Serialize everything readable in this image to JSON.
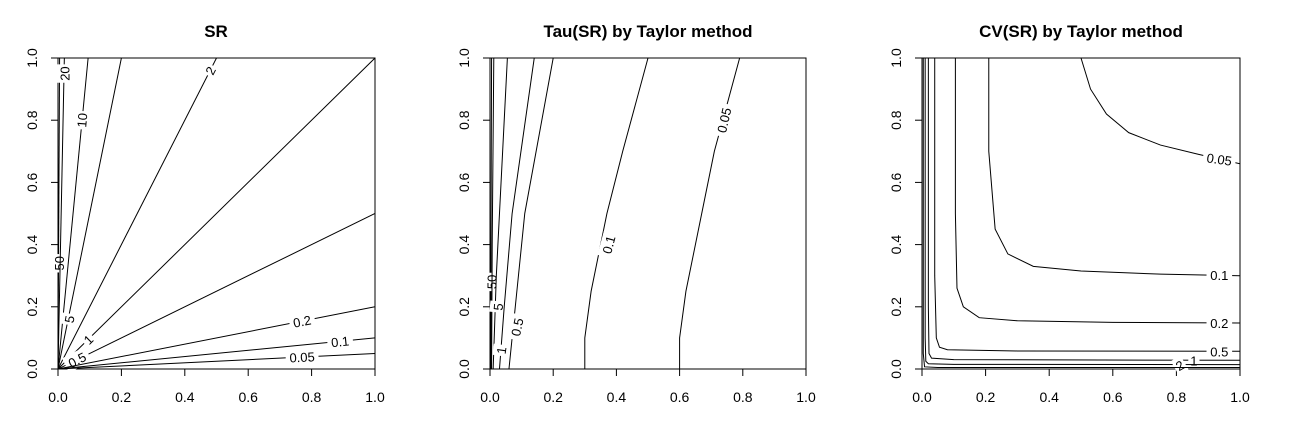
{
  "chart_data": [
    {
      "type": "contour",
      "title": "SR",
      "xlim": [
        0,
        1
      ],
      "ylim": [
        0,
        1
      ],
      "x_ticks": [
        "0.0",
        "0.2",
        "0.4",
        "0.6",
        "0.8",
        "1.0"
      ],
      "y_ticks": [
        "0.0",
        "0.2",
        "0.4",
        "0.6",
        "0.8",
        "1.0"
      ],
      "contours": [
        {
          "level": 50,
          "label": "50",
          "points": [
            [
              0,
              0
            ],
            [
              0.005,
              1
            ]
          ],
          "label_at": [
            0.003,
            0.34
          ],
          "label_rotation": -90
        },
        {
          "level": 20,
          "label": "20",
          "points": [
            [
              0,
              0
            ],
            [
              0.02,
              1
            ]
          ],
          "label_at": [
            0.02,
            0.95
          ],
          "label_rotation": -90
        },
        {
          "level": 10,
          "label": "10",
          "points": [
            [
              0,
              0
            ],
            [
              0.095,
              1
            ]
          ],
          "label_at": [
            0.075,
            0.8
          ],
          "label_rotation": -85
        },
        {
          "level": 5,
          "label": "5",
          "points": [
            [
              0,
              0
            ],
            [
              0.2,
              1
            ]
          ],
          "label_at": [
            0.035,
            0.16
          ],
          "label_rotation": -80
        },
        {
          "level": 2,
          "label": "2",
          "points": [
            [
              0,
              0
            ],
            [
              0.5,
              1
            ]
          ],
          "label_at": [
            0.48,
            0.96
          ],
          "label_rotation": -63
        },
        {
          "level": 1,
          "label": "1",
          "points": [
            [
              0,
              0
            ],
            [
              1,
              1
            ]
          ],
          "label_at": [
            0.095,
            0.095
          ],
          "label_rotation": -45
        },
        {
          "level": 0.5,
          "label": "0.5",
          "points": [
            [
              0,
              0
            ],
            [
              1,
              0.5
            ]
          ],
          "label_at": [
            0.06,
            0.03
          ],
          "label_rotation": -27
        },
        {
          "level": 0.2,
          "label": "0.2",
          "points": [
            [
              0,
              0
            ],
            [
              1,
              0.2
            ]
          ],
          "label_at": [
            0.77,
            0.154
          ],
          "label_rotation": -11
        },
        {
          "level": 0.1,
          "label": "0.1",
          "points": [
            [
              0,
              0
            ],
            [
              1,
              0.1
            ]
          ],
          "label_at": [
            0.89,
            0.089
          ],
          "label_rotation": -6
        },
        {
          "level": 0.05,
          "label": "0.05",
          "points": [
            [
              0,
              0
            ],
            [
              1,
              0.05
            ]
          ],
          "label_at": [
            0.77,
            0.039
          ],
          "label_rotation": -3
        }
      ]
    },
    {
      "type": "contour",
      "title": "Tau(SR) by Taylor method",
      "xlim": [
        0,
        1
      ],
      "ylim": [
        0,
        1
      ],
      "x_ticks": [
        "0.0",
        "0.2",
        "0.4",
        "0.6",
        "0.8",
        "1.0"
      ],
      "y_ticks": [
        "0.0",
        "0.2",
        "0.4",
        "0.6",
        "0.8",
        "1.0"
      ],
      "contours": [
        {
          "level": 50,
          "label": "50",
          "points": [
            [
              0.003,
              0
            ],
            [
              0.003,
              0.3
            ],
            [
              0.004,
              0.7
            ],
            [
              0.005,
              1
            ]
          ],
          "label_at": [
            0.005,
            0.28
          ],
          "label_rotation": -90
        },
        {
          "level": 20,
          "label": "",
          "points": [
            [
              0.005,
              0
            ],
            [
              0.007,
              0.4
            ],
            [
              0.012,
              1
            ]
          ],
          "label_at": null,
          "label_rotation": 0
        },
        {
          "level": 5,
          "label": "5",
          "points": [
            [
              0.01,
              0
            ],
            [
              0.02,
              0.3
            ],
            [
              0.04,
              0.7
            ],
            [
              0.055,
              1
            ]
          ],
          "label_at": [
            0.025,
            0.2
          ],
          "label_rotation": -85
        },
        {
          "level": 1,
          "label": "1",
          "points": [
            [
              0.03,
              0
            ],
            [
              0.045,
              0.2
            ],
            [
              0.07,
              0.5
            ],
            [
              0.14,
              1
            ]
          ],
          "label_at": [
            0.035,
            0.06
          ],
          "label_rotation": -82
        },
        {
          "level": 0.5,
          "label": "0.5",
          "points": [
            [
              0.06,
              0
            ],
            [
              0.08,
              0.2
            ],
            [
              0.11,
              0.5
            ],
            [
              0.2,
              1
            ]
          ],
          "label_at": [
            0.085,
            0.135
          ],
          "label_rotation": -78
        },
        {
          "level": 0.1,
          "label": "0.1",
          "points": [
            [
              0.3,
              0
            ],
            [
              0.3,
              0.1
            ],
            [
              0.32,
              0.25
            ],
            [
              0.37,
              0.5
            ],
            [
              0.42,
              0.7
            ],
            [
              0.5,
              1
            ]
          ],
          "label_at": [
            0.375,
            0.4
          ],
          "label_rotation": -75
        },
        {
          "level": 0.05,
          "label": "0.05",
          "points": [
            [
              0.6,
              0
            ],
            [
              0.6,
              0.1
            ],
            [
              0.62,
              0.25
            ],
            [
              0.67,
              0.5
            ],
            [
              0.71,
              0.7
            ],
            [
              0.79,
              1
            ]
          ],
          "label_at": [
            0.74,
            0.8
          ],
          "label_rotation": -77
        }
      ]
    },
    {
      "type": "contour",
      "title": "CV(SR) by Taylor method",
      "xlim": [
        0,
        1
      ],
      "ylim": [
        0,
        1
      ],
      "x_ticks": [
        "0.0",
        "0.2",
        "0.4",
        "0.6",
        "0.8",
        "1.0"
      ],
      "y_ticks": [
        "0.0",
        "0.2",
        "0.4",
        "0.6",
        "0.8",
        "1.0"
      ],
      "contours": [
        {
          "level": 0.05,
          "label": "0.05",
          "points": [
            [
              0.5,
              1
            ],
            [
              0.53,
              0.9
            ],
            [
              0.58,
              0.82
            ],
            [
              0.65,
              0.76
            ],
            [
              0.75,
              0.72
            ],
            [
              0.87,
              0.69
            ],
            [
              1,
              0.66
            ]
          ],
          "label_at": [
            0.935,
            0.675
          ],
          "label_rotation": 8
        },
        {
          "level": 0.1,
          "label": "0.1",
          "points": [
            [
              0.21,
              1
            ],
            [
              0.21,
              0.7
            ],
            [
              0.23,
              0.45
            ],
            [
              0.27,
              0.37
            ],
            [
              0.35,
              0.33
            ],
            [
              0.5,
              0.315
            ],
            [
              0.75,
              0.305
            ],
            [
              1,
              0.3
            ]
          ],
          "label_at": [
            0.935,
            0.302
          ],
          "label_rotation": 0
        },
        {
          "level": 0.2,
          "label": "0.2",
          "points": [
            [
              0.105,
              1
            ],
            [
              0.105,
              0.5
            ],
            [
              0.11,
              0.26
            ],
            [
              0.13,
              0.2
            ],
            [
              0.18,
              0.165
            ],
            [
              0.3,
              0.155
            ],
            [
              0.6,
              0.15
            ],
            [
              1,
              0.148
            ]
          ],
          "label_at": [
            0.935,
            0.148
          ],
          "label_rotation": 0
        },
        {
          "level": 0.5,
          "label": "0.5",
          "points": [
            [
              0.04,
              1
            ],
            [
              0.04,
              0.3
            ],
            [
              0.045,
              0.1
            ],
            [
              0.055,
              0.07
            ],
            [
              0.08,
              0.062
            ],
            [
              0.3,
              0.058
            ],
            [
              1,
              0.057
            ]
          ],
          "label_at": [
            0.935,
            0.057
          ],
          "label_rotation": 0
        },
        {
          "level": 1,
          "label": "1",
          "points": [
            [
              0.02,
              1
            ],
            [
              0.02,
              0.2
            ],
            [
              0.022,
              0.05
            ],
            [
              0.03,
              0.035
            ],
            [
              0.1,
              0.03
            ],
            [
              1,
              0.028
            ]
          ],
          "label_at": [
            0.855,
            0.028
          ],
          "label_rotation": 0
        },
        {
          "level": 2,
          "label": "2",
          "points": [
            [
              0.01,
              1
            ],
            [
              0.01,
              0.1
            ],
            [
              0.012,
              0.025
            ],
            [
              0.02,
              0.017
            ],
            [
              0.1,
              0.015
            ],
            [
              1,
              0.014
            ]
          ],
          "label_at": [
            0.81,
            0.012
          ],
          "label_rotation": -30
        },
        {
          "level": 5,
          "label": "",
          "points": [
            [
              0.004,
              1
            ],
            [
              0.004,
              0.05
            ],
            [
              0.008,
              0.007
            ],
            [
              0.05,
              0.005
            ],
            [
              1,
              0.005
            ]
          ],
          "label_at": null,
          "label_rotation": 0
        }
      ]
    }
  ]
}
